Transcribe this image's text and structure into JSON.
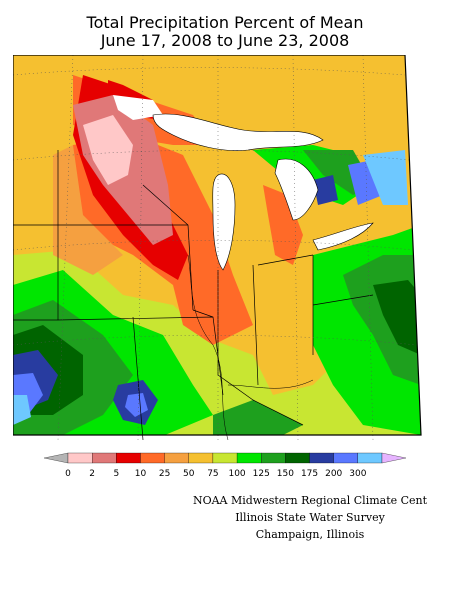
{
  "title": {
    "line1": "Total Precipitation Percent of Mean",
    "line2": "June 17, 2008 to June 23, 2008"
  },
  "legend": {
    "labels": [
      "0",
      "2",
      "5",
      "10",
      "25",
      "50",
      "75",
      "100",
      "125",
      "150",
      "175",
      "200",
      "300"
    ],
    "colors": [
      "#ffc8c8",
      "#e07878",
      "#e60000",
      "#ff6a28",
      "#f5a040",
      "#f5c030",
      "#c8e632",
      "#00e600",
      "#1ea01e",
      "#006400",
      "#283ca0",
      "#5a78ff",
      "#6ec8ff"
    ],
    "under_color": "#b4b4b4",
    "over_color": "#e6b4ff"
  },
  "credits": {
    "line1": "NOAA Midwestern Regional Climate Cent",
    "line2": "Illinois State Water Survey",
    "line3": "Champaign, Illinois"
  }
}
